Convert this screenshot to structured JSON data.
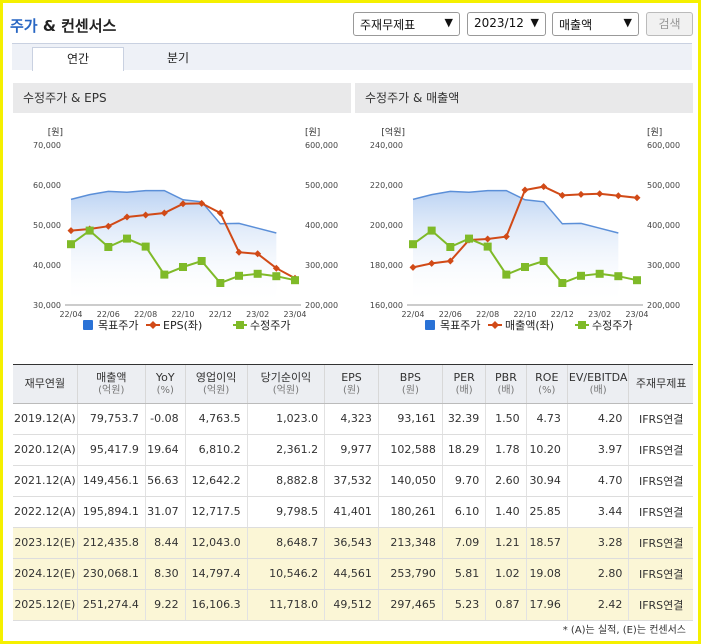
{
  "header": {
    "title_main": "주가",
    "title_rest": " & 컨센서스",
    "select_type": "주재무제표",
    "select_period": "2023/12",
    "select_metric": "매출액",
    "search_label": "검색"
  },
  "tabs": [
    {
      "label": "연간"
    },
    {
      "label": "분기"
    }
  ],
  "left_chart_title": "수정주가 & EPS",
  "right_chart_title": "수정주가 & 매출액",
  "chart_data": [
    {
      "type": "line",
      "title": "수정주가 & EPS",
      "left_unit": "[원]",
      "right_unit": "[원]",
      "y_left": {
        "lim": [
          30000,
          70000
        ],
        "ticks": [
          "70,000",
          "60,000",
          "50,000",
          "40,000",
          "30,000"
        ]
      },
      "y_right": {
        "lim": [
          200000,
          600000
        ],
        "ticks": [
          "600,000",
          "500,000",
          "400,000",
          "300,000",
          "200,000"
        ]
      },
      "x_ticks": [
        "22/04",
        "22/06",
        "22/08",
        "22/10",
        "22/12",
        "23/02",
        "23/04"
      ],
      "series": [
        {
          "name": "목표주가",
          "axis": "right",
          "style": "area",
          "color": "#2a72d6",
          "values": [
            464000,
            476000,
            484000,
            482000,
            486000,
            486000,
            463000,
            458000,
            403000,
            404000,
            392000,
            380000
          ]
        },
        {
          "name": "EPS(좌)",
          "axis": "left",
          "style": "line-diamond",
          "color": "#d14a17",
          "values": [
            48600,
            49000,
            49700,
            52000,
            52500,
            53000,
            55300,
            55400,
            53000,
            43200,
            42800,
            39200,
            36700
          ]
        },
        {
          "name": "수정주가",
          "axis": "right",
          "style": "line-square",
          "color": "#7fba28",
          "values": [
            352000,
            386000,
            345000,
            366000,
            346000,
            276000,
            295000,
            310000,
            255000,
            273000,
            278000,
            272000,
            262000
          ]
        }
      ]
    },
    {
      "type": "line",
      "title": "수정주가 & 매출액",
      "left_unit": "[억원]",
      "right_unit": "[원]",
      "y_left": {
        "lim": [
          160000,
          240000
        ],
        "ticks": [
          "240,000",
          "220,000",
          "200,000",
          "180,000",
          "160,000"
        ]
      },
      "y_right": {
        "lim": [
          200000,
          600000
        ],
        "ticks": [
          "600,000",
          "500,000",
          "400,000",
          "300,000",
          "200,000"
        ]
      },
      "x_ticks": [
        "22/04",
        "22/06",
        "22/08",
        "22/10",
        "22/12",
        "23/02",
        "23/04"
      ],
      "series": [
        {
          "name": "목표주가",
          "axis": "right",
          "style": "area",
          "color": "#2a72d6",
          "values": [
            464000,
            476000,
            484000,
            482000,
            486000,
            486000,
            463000,
            458000,
            403000,
            404000,
            392000,
            380000
          ]
        },
        {
          "name": "매출액(좌)",
          "axis": "left",
          "style": "line-diamond",
          "color": "#d14a17",
          "values": [
            178800,
            180800,
            182000,
            192500,
            193000,
            194200,
            217500,
            219200,
            214800,
            215300,
            215600,
            214600,
            213600
          ]
        },
        {
          "name": "수정주가",
          "axis": "right",
          "style": "line-square",
          "color": "#7fba28",
          "values": [
            352000,
            386000,
            345000,
            366000,
            346000,
            276000,
            295000,
            310000,
            255000,
            273000,
            278000,
            272000,
            262000
          ]
        }
      ]
    }
  ],
  "table": {
    "headers": [
      {
        "main": "재무연월",
        "sub": ""
      },
      {
        "main": "매출액",
        "sub": "(억원)"
      },
      {
        "main": "YoY",
        "sub": "(%)"
      },
      {
        "main": "영업이익",
        "sub": "(억원)"
      },
      {
        "main": "당기순이익",
        "sub": "(억원)"
      },
      {
        "main": "EPS",
        "sub": "(원)"
      },
      {
        "main": "BPS",
        "sub": "(원)"
      },
      {
        "main": "PER",
        "sub": "(배)"
      },
      {
        "main": "PBR",
        "sub": "(배)"
      },
      {
        "main": "ROE",
        "sub": "(%)"
      },
      {
        "main": "EV/EBITDA",
        "sub": "(배)"
      },
      {
        "main": "주재무제표",
        "sub": ""
      }
    ],
    "rows": [
      {
        "est": false,
        "cells": [
          "2019.12(A)",
          "79,753.7",
          "-0.08",
          "4,763.5",
          "1,023.0",
          "4,323",
          "93,161",
          "32.39",
          "1.50",
          "4.73",
          "4.20",
          "IFRS연결"
        ]
      },
      {
        "est": false,
        "cells": [
          "2020.12(A)",
          "95,417.9",
          "19.64",
          "6,810.2",
          "2,361.2",
          "9,977",
          "102,588",
          "18.29",
          "1.78",
          "10.20",
          "3.97",
          "IFRS연결"
        ]
      },
      {
        "est": false,
        "cells": [
          "2021.12(A)",
          "149,456.1",
          "56.63",
          "12,642.2",
          "8,882.8",
          "37,532",
          "140,050",
          "9.70",
          "2.60",
          "30.94",
          "4.70",
          "IFRS연결"
        ]
      },
      {
        "est": false,
        "cells": [
          "2022.12(A)",
          "195,894.1",
          "31.07",
          "12,717.5",
          "9,798.5",
          "41,401",
          "180,261",
          "6.10",
          "1.40",
          "25.85",
          "3.44",
          "IFRS연결"
        ]
      },
      {
        "est": true,
        "cells": [
          "2023.12(E)",
          "212,435.8",
          "8.44",
          "12,043.0",
          "8,648.7",
          "36,543",
          "213,348",
          "7.09",
          "1.21",
          "18.57",
          "3.28",
          "IFRS연결"
        ]
      },
      {
        "est": true,
        "cells": [
          "2024.12(E)",
          "230,068.1",
          "8.30",
          "14,797.4",
          "10,546.2",
          "44,561",
          "253,790",
          "5.81",
          "1.02",
          "19.08",
          "2.80",
          "IFRS연결"
        ]
      },
      {
        "est": true,
        "cells": [
          "2025.12(E)",
          "251,274.4",
          "9.22",
          "16,106.3",
          "11,718.0",
          "49,512",
          "297,465",
          "5.23",
          "0.87",
          "17.96",
          "2.42",
          "IFRS연결"
        ]
      }
    ]
  },
  "footnote": "* (A)는 실적, (E)는 컨센서스"
}
